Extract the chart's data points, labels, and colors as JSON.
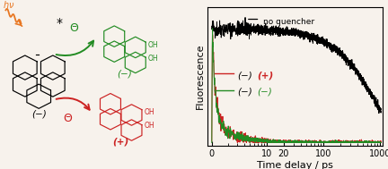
{
  "xlabel": "Time delay / ps",
  "ylabel": "Fluorescence",
  "bg_color": "#f7f2ec",
  "line_colors": {
    "no_quencher": "#000000",
    "red": "#cc2222",
    "green": "#228B22"
  },
  "legend_no_quencher": "no quencher",
  "legend_red_black": "(−)",
  "legend_red_color": "(+)",
  "legend_green_black": "(−)",
  "legend_green_color": "(−)",
  "seed": 42,
  "tick_label_fontsize": 7,
  "axis_label_fontsize": 8,
  "linthresh": 3.0,
  "xlim_left": -0.5,
  "xlim_right": 1200
}
